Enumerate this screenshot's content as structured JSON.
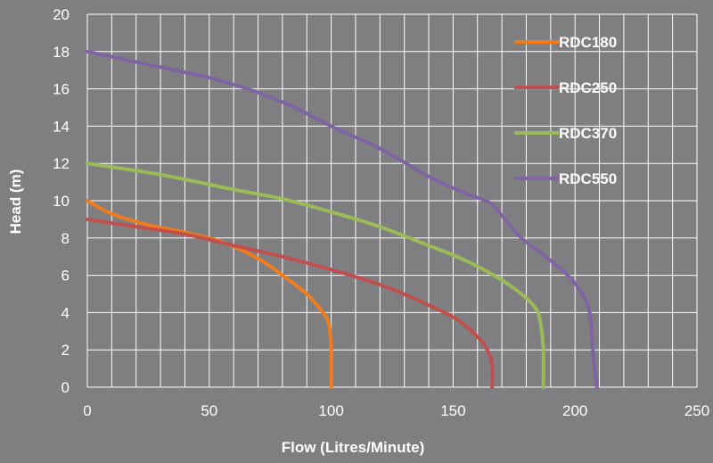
{
  "chart_data": {
    "type": "line",
    "xlabel": "Flow (Litres/Minute)",
    "ylabel": "Head (m)",
    "xlim": [
      0,
      250
    ],
    "ylim": [
      0,
      20
    ],
    "x_ticks": [
      0,
      50,
      100,
      150,
      200,
      250
    ],
    "y_ticks": [
      0,
      2,
      4,
      6,
      8,
      10,
      12,
      14,
      16,
      18,
      20
    ],
    "grid": true,
    "legend_position": "top-right",
    "background_color": "#7f7f81",
    "series": [
      {
        "name": "RDC180",
        "color": "#f07c1e",
        "points": [
          [
            0,
            10
          ],
          [
            10,
            9.3
          ],
          [
            25,
            8.7
          ],
          [
            40,
            8.3
          ],
          [
            55,
            7.8
          ],
          [
            70,
            6.9
          ],
          [
            80,
            6.0
          ],
          [
            90,
            5.0
          ],
          [
            96,
            4.1
          ],
          [
            99,
            3.4
          ],
          [
            100,
            2
          ],
          [
            100,
            0
          ]
        ]
      },
      {
        "name": "RDC250",
        "color": "#c0504d",
        "points": [
          [
            0,
            9
          ],
          [
            20,
            8.6
          ],
          [
            40,
            8.2
          ],
          [
            60,
            7.6
          ],
          [
            80,
            7.0
          ],
          [
            100,
            6.3
          ],
          [
            120,
            5.5
          ],
          [
            140,
            4.4
          ],
          [
            152,
            3.6
          ],
          [
            160,
            2.7
          ],
          [
            164,
            2
          ],
          [
            166,
            1.2
          ],
          [
            166,
            0
          ]
        ]
      },
      {
        "name": "RDC370",
        "color": "#9bbb59",
        "points": [
          [
            0,
            12
          ],
          [
            30,
            11.4
          ],
          [
            60,
            10.6
          ],
          [
            80,
            10.1
          ],
          [
            100,
            9.4
          ],
          [
            120,
            8.6
          ],
          [
            140,
            7.6
          ],
          [
            155,
            6.8
          ],
          [
            168,
            5.9
          ],
          [
            178,
            5.0
          ],
          [
            184,
            4.2
          ],
          [
            186,
            3.3
          ],
          [
            187,
            2
          ],
          [
            187,
            0
          ]
        ]
      },
      {
        "name": "RDC550",
        "color": "#8064a2",
        "points": [
          [
            0,
            18
          ],
          [
            25,
            17.3
          ],
          [
            50,
            16.6
          ],
          [
            70,
            15.8
          ],
          [
            85,
            15.0
          ],
          [
            100,
            14.0
          ],
          [
            120,
            12.8
          ],
          [
            140,
            11.3
          ],
          [
            155,
            10.4
          ],
          [
            165,
            9.9
          ],
          [
            170,
            9.2
          ],
          [
            178,
            8.0
          ],
          [
            188,
            7.0
          ],
          [
            197,
            6.0
          ],
          [
            203,
            5.0
          ],
          [
            206,
            4.0
          ],
          [
            207,
            2.5
          ],
          [
            208,
            1.0
          ],
          [
            209,
            0
          ]
        ]
      }
    ]
  }
}
